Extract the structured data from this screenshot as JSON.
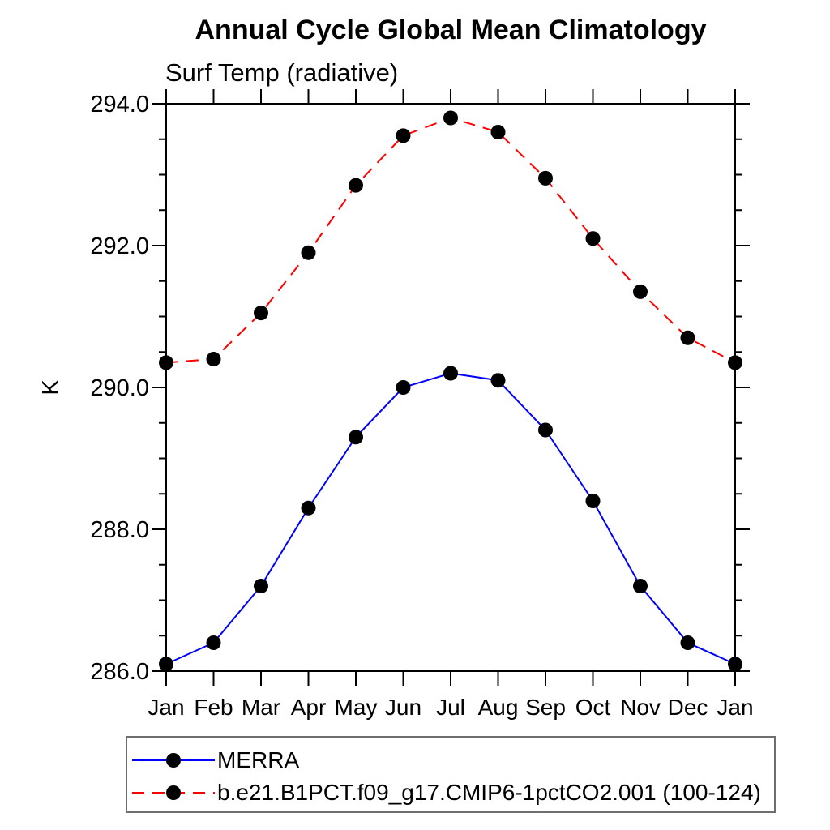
{
  "chart": {
    "title": "Annual Cycle Global Mean Climatology",
    "subtitle": "Surf Temp (radiative)"
  },
  "chart_data": {
    "type": "line",
    "categories": [
      "Jan",
      "Feb",
      "Mar",
      "Apr",
      "May",
      "Jun",
      "Jul",
      "Aug",
      "Sep",
      "Oct",
      "Nov",
      "Dec",
      "Jan"
    ],
    "title": "Annual Cycle Global Mean Climatology",
    "subtitle": "Surf Temp (radiative)",
    "xlabel": "",
    "ylabel": "K",
    "ylim": [
      286.0,
      294.0
    ],
    "ytick_major_values": [
      286.0,
      288.0,
      290.0,
      292.0,
      294.0
    ],
    "ytick_major_labels": [
      "286.0",
      "288.0",
      "290.0",
      "292.0",
      "294.0"
    ],
    "ytick_minor_step": 0.5,
    "grid": false,
    "legend_position": "bottom-left-box",
    "frame_color": "#000000",
    "marker_color": "#000000",
    "series": [
      {
        "name": "MERRA",
        "color": "#0000ff",
        "line_style": "solid",
        "marker": "filled-circle",
        "values": [
          286.1,
          286.4,
          287.2,
          288.3,
          289.3,
          290.0,
          290.2,
          290.1,
          289.4,
          288.4,
          287.2,
          286.4,
          286.1
        ]
      },
      {
        "name": "b.e21.B1PCT.f09_g17.CMIP6-1pctCO2.001 (100-124)",
        "color": "#ff0000",
        "line_style": "dashed",
        "marker": "filled-circle",
        "values": [
          290.35,
          290.4,
          291.05,
          291.9,
          292.85,
          293.55,
          293.8,
          293.6,
          292.95,
          292.1,
          291.35,
          290.7,
          290.35
        ]
      }
    ]
  }
}
